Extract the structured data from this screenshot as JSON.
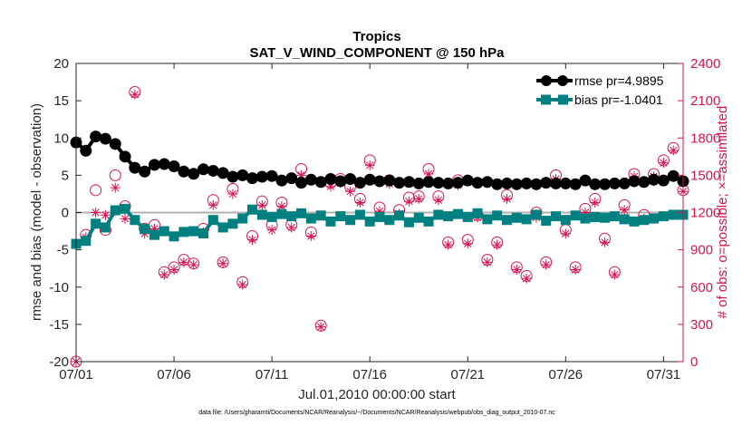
{
  "chart_data": {
    "type": "line",
    "title": "Tropics",
    "subtitle": "SAT_V_WIND_COMPONENT @ 150 hPa",
    "xlabel": "Jul.01,2010 00:00:00 start",
    "ylabel": "rmse and bias (model - observation)",
    "ylabel_right": "# of obs: o=possible; ×=assimilated",
    "footnote": "data file: /Users/gharamti/Documents/NCAR/Reanalysis/~/Documents/NCAR/Reanalysis/webpub/obs_diag_output_2010-07.nc",
    "x_tick_labels": [
      "07/01",
      "07/06",
      "07/11",
      "07/16",
      "07/21",
      "07/26",
      "07/31"
    ],
    "x_tick_days": [
      1,
      6,
      11,
      16,
      21,
      26,
      31
    ],
    "xlim": [
      1,
      32
    ],
    "ylim": [
      -20,
      20
    ],
    "y_ticks": [
      -20,
      -15,
      -10,
      -5,
      0,
      5,
      10,
      15,
      20
    ],
    "y2lim": [
      0,
      2400
    ],
    "y2_ticks": [
      0,
      300,
      600,
      900,
      1200,
      1500,
      1800,
      2100,
      2400
    ],
    "legend_position": "top-right",
    "colors": {
      "rmse": "#000000",
      "bias": "#008080",
      "obs": "#d6144f",
      "zero_line": "#b0b0b0"
    },
    "series": [
      {
        "name": "rmse",
        "legend_label": "rmse pr=4.9895",
        "x": [
          1.0,
          1.5,
          2.0,
          2.5,
          3.0,
          3.5,
          4.0,
          4.5,
          5.0,
          5.5,
          6.0,
          6.5,
          7.0,
          7.5,
          8.0,
          8.5,
          9.0,
          9.5,
          10.0,
          10.5,
          11.0,
          11.5,
          12.0,
          12.5,
          13.0,
          13.5,
          14.0,
          14.5,
          15.0,
          15.5,
          16.0,
          16.5,
          17.0,
          17.5,
          18.0,
          18.5,
          19.0,
          19.5,
          20.0,
          20.5,
          21.0,
          21.5,
          22.0,
          22.5,
          23.0,
          23.5,
          24.0,
          24.5,
          25.0,
          25.5,
          26.0,
          26.5,
          27.0,
          27.5,
          28.0,
          28.5,
          29.0,
          29.5,
          30.0,
          30.5,
          31.0,
          31.5,
          32.0
        ],
        "values": [
          9.4,
          8.3,
          10.2,
          9.9,
          9.2,
          7.5,
          6.0,
          5.5,
          6.4,
          6.5,
          6.2,
          5.5,
          5.2,
          5.8,
          5.6,
          5.3,
          4.8,
          5.0,
          4.6,
          4.8,
          4.9,
          4.3,
          4.6,
          4.0,
          4.4,
          4.1,
          4.5,
          4.2,
          4.5,
          4.0,
          4.4,
          4.2,
          4.3,
          4.0,
          4.1,
          3.9,
          4.1,
          4.0,
          3.9,
          4.0,
          4.3,
          4.0,
          4.1,
          3.8,
          3.9,
          3.8,
          3.9,
          3.8,
          4.0,
          3.9,
          3.9,
          3.8,
          4.3,
          3.8,
          3.8,
          3.9,
          3.9,
          4.2,
          4.1,
          4.4,
          4.3,
          4.9,
          4.2
        ]
      },
      {
        "name": "bias",
        "legend_label": "bias pr=-1.0401",
        "x": [
          1.0,
          1.5,
          2.0,
          2.5,
          3.0,
          3.5,
          4.0,
          4.5,
          5.0,
          5.5,
          6.0,
          6.5,
          7.0,
          7.5,
          8.0,
          8.5,
          9.0,
          9.5,
          10.0,
          10.5,
          11.0,
          11.5,
          12.0,
          12.5,
          13.0,
          13.5,
          14.0,
          14.5,
          15.0,
          15.5,
          16.0,
          16.5,
          17.0,
          17.5,
          18.0,
          18.5,
          19.0,
          19.5,
          20.0,
          20.5,
          21.0,
          21.5,
          22.0,
          22.5,
          23.0,
          23.5,
          24.0,
          24.5,
          25.0,
          25.5,
          26.0,
          26.5,
          27.0,
          27.5,
          28.0,
          28.5,
          29.0,
          29.5,
          30.0,
          30.5,
          31.0,
          31.5,
          32.0
        ],
        "values": [
          -4.2,
          -3.8,
          -1.5,
          -2.0,
          0.3,
          0.5,
          -1.0,
          -2.2,
          -3.0,
          -2.5,
          -3.2,
          -2.6,
          -2.5,
          -2.8,
          -1.0,
          -2.0,
          -1.5,
          -0.8,
          0.4,
          -0.3,
          -0.6,
          -0.2,
          -0.5,
          -0.1,
          -0.8,
          -0.4,
          -1.2,
          -0.5,
          -1.0,
          -0.3,
          -1.2,
          -0.6,
          -1.0,
          -0.4,
          -1.3,
          -0.7,
          -1.2,
          -0.3,
          -0.5,
          -0.2,
          -0.6,
          -0.1,
          -0.9,
          -0.4,
          -1.0,
          -0.7,
          -0.9,
          -0.3,
          -1.1,
          -0.5,
          -1.0,
          -0.4,
          -0.8,
          -0.6,
          -0.7,
          -0.5,
          -0.9,
          -1.2,
          -1.0,
          -0.8,
          -0.5,
          -0.3,
          -0.3
        ]
      },
      {
        "name": "obs_possible",
        "axis": "right",
        "x": [
          1.0,
          1.5,
          2.0,
          2.5,
          3.0,
          3.5,
          4.0,
          4.5,
          5.0,
          5.5,
          6.0,
          6.5,
          7.0,
          7.5,
          8.0,
          8.5,
          9.0,
          9.5,
          10.0,
          10.5,
          11.0,
          11.5,
          12.0,
          12.5,
          13.0,
          13.5,
          14.0,
          14.5,
          15.0,
          15.5,
          16.0,
          16.5,
          17.0,
          17.5,
          18.0,
          18.5,
          19.0,
          19.5,
          20.0,
          20.5,
          21.0,
          21.5,
          22.0,
          22.5,
          23.0,
          23.5,
          24.0,
          24.5,
          25.0,
          25.5,
          26.0,
          26.5,
          27.0,
          27.5,
          28.0,
          28.5,
          29.0,
          29.5,
          30.0,
          30.5,
          31.0,
          31.5,
          32.0
        ],
        "values": [
          0,
          1020,
          1380,
          1060,
          1500,
          1250,
          2170,
          1070,
          1100,
          720,
          760,
          820,
          790,
          1070,
          1300,
          800,
          1390,
          640,
          1010,
          1290,
          1100,
          1280,
          1100,
          1550,
          1040,
          290,
          1440,
          1470,
          1410,
          1310,
          1620,
          1240,
          1460,
          1220,
          1320,
          1330,
          1550,
          1330,
          960,
          1460,
          980,
          1180,
          820,
          960,
          1340,
          760,
          690,
          1200,
          800,
          1500,
          1060,
          760,
          1230,
          1310,
          990,
          720,
          1260,
          1510,
          1180,
          1510,
          1620,
          1720,
          1380
        ]
      },
      {
        "name": "obs_assimilated",
        "axis": "right",
        "x": [
          1.0,
          1.5,
          2.0,
          2.5,
          3.0,
          3.5,
          4.0,
          4.5,
          5.0,
          5.5,
          6.0,
          6.5,
          7.0,
          7.5,
          8.0,
          8.5,
          9.0,
          9.5,
          10.0,
          10.5,
          11.0,
          11.5,
          12.0,
          12.5,
          13.0,
          13.5,
          14.0,
          14.5,
          15.0,
          15.5,
          16.0,
          16.5,
          17.0,
          17.5,
          18.0,
          18.5,
          19.0,
          19.5,
          20.0,
          20.5,
          21.0,
          21.5,
          22.0,
          22.5,
          23.0,
          23.5,
          24.0,
          24.5,
          25.0,
          25.5,
          26.0,
          26.5,
          27.0,
          27.5,
          28.0,
          28.5,
          29.0,
          29.5,
          30.0,
          30.5,
          31.0,
          31.5,
          32.0
        ],
        "values": [
          0,
          1000,
          1200,
          1180,
          1400,
          1150,
          2150,
          1030,
          1070,
          700,
          740,
          800,
          780,
          1040,
          1260,
          790,
          1350,
          620,
          980,
          1260,
          1060,
          1250,
          1080,
          1500,
          1010,
          280,
          1410,
          1440,
          1370,
          1280,
          1580,
          1210,
          1430,
          1190,
          1290,
          1310,
          1510,
          1300,
          940,
          1420,
          950,
          1160,
          800,
          940,
          1310,
          740,
          670,
          1160,
          780,
          1470,
          1030,
          740,
          1200,
          1280,
          960,
          700,
          1220,
          1490,
          1150,
          1490,
          1600,
          1700,
          1370
        ]
      }
    ]
  }
}
